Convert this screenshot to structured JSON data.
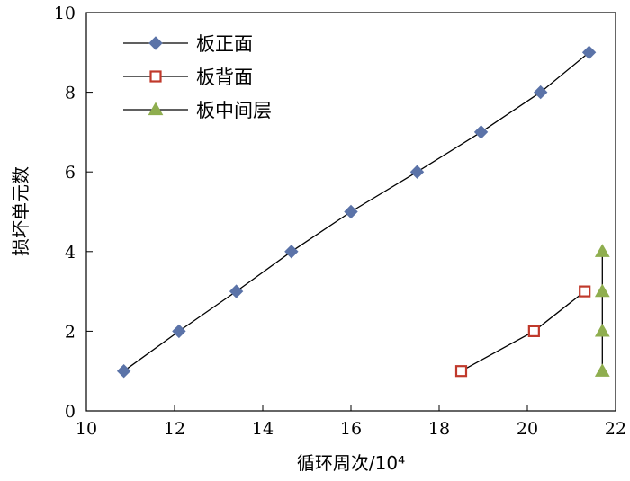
{
  "chart_data": {
    "type": "line",
    "xlabel": "循环周次/10⁴",
    "ylabel": "损坏单元数",
    "xlim": [
      10,
      22
    ],
    "ylim": [
      0,
      10
    ],
    "xticks": [
      "10",
      "12",
      "14",
      "16",
      "18",
      "20",
      "22"
    ],
    "yticks": [
      "0",
      "2",
      "4",
      "6",
      "8",
      "10"
    ],
    "grid": false,
    "legend_position": "top-left",
    "series": [
      {
        "name": "板正面",
        "marker": "diamond",
        "color": "#5b73a8",
        "x": [
          10.85,
          12.1,
          13.4,
          14.65,
          16.0,
          17.5,
          18.95,
          20.3,
          21.4
        ],
        "y": [
          1,
          2,
          3,
          4,
          5,
          6,
          7,
          8,
          9
        ]
      },
      {
        "name": "板背面",
        "marker": "square-open",
        "color": "#c0392b",
        "x": [
          18.5,
          20.15,
          21.3
        ],
        "y": [
          1,
          2,
          3
        ]
      },
      {
        "name": "板中间层",
        "marker": "triangle",
        "color": "#8fae4f",
        "x": [
          21.7,
          21.7,
          21.7,
          21.7
        ],
        "y": [
          1,
          2,
          3,
          4
        ]
      }
    ]
  }
}
